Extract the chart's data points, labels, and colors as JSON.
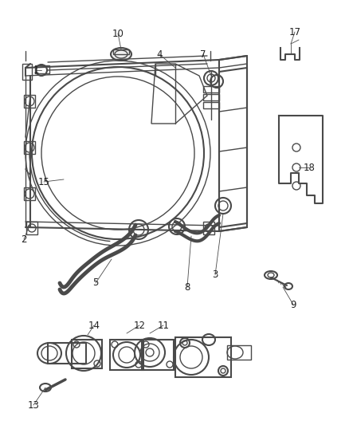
{
  "bg_color": "#ffffff",
  "line_color": "#4a4a4a",
  "label_color": "#222222",
  "label_fontsize": 8.5,
  "fig_width": 4.38,
  "fig_height": 5.33,
  "dpi": 100
}
